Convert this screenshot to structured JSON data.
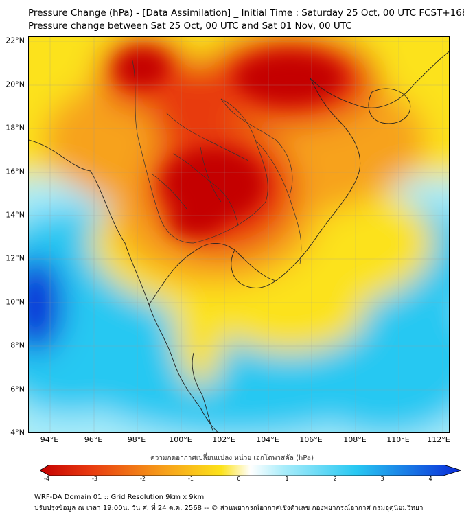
{
  "header": {
    "title_line1": "Pressure Change (hPa) - [Data Assimilation] _ Initial Time : Saturday 25 Oct, 00 UTC FCST+168",
    "title_line2": "Pressure change between Sat 25 Oct, 00 UTC and Sat 01 Nov, 00 UTC"
  },
  "map": {
    "lat_labels": [
      "22°N",
      "20°N",
      "18°N",
      "16°N",
      "14°N",
      "12°N",
      "10°N",
      "8°N",
      "6°N",
      "4°N"
    ],
    "lon_labels": [
      "94°E",
      "96°E",
      "98°E",
      "100°E",
      "102°E",
      "104°E",
      "106°E",
      "108°E",
      "110°E",
      "112°E"
    ],
    "colors": {
      "strong_positive": "#c40000",
      "positive": "#e83a10",
      "moderate_positive": "#f7a21a",
      "weak_positive": "#fce21a",
      "neutral": "#ffffff",
      "weak_negative": "#a8ecfa",
      "negative": "#28c8f2",
      "strong_negative": "#0a2ad8"
    }
  },
  "colorbar": {
    "label": "ความกดอากาศเปลี่ยนแปลง หน่วย เฮกโตพาสคัล (hPa)",
    "ticks": [
      "-4",
      "-3",
      "-2",
      "-1",
      "0",
      "1",
      "2",
      "3",
      "4"
    ],
    "min": -4.4,
    "max": 4.4
  },
  "footer": {
    "line1": "WRF-DA Domain 01 :: Grid Resolution 9km x 9km",
    "line2": "ปรับปรุงข้อมูล ณ เวลา 19:00น. วัน ศ. ที่ 24 ต.ค. 2568 -- © ส่วนพยากรณ์อากาศเชิงตัวเลข กองพยากรณ์อากาศ กรมอุตุนิยมวิทยา"
  }
}
